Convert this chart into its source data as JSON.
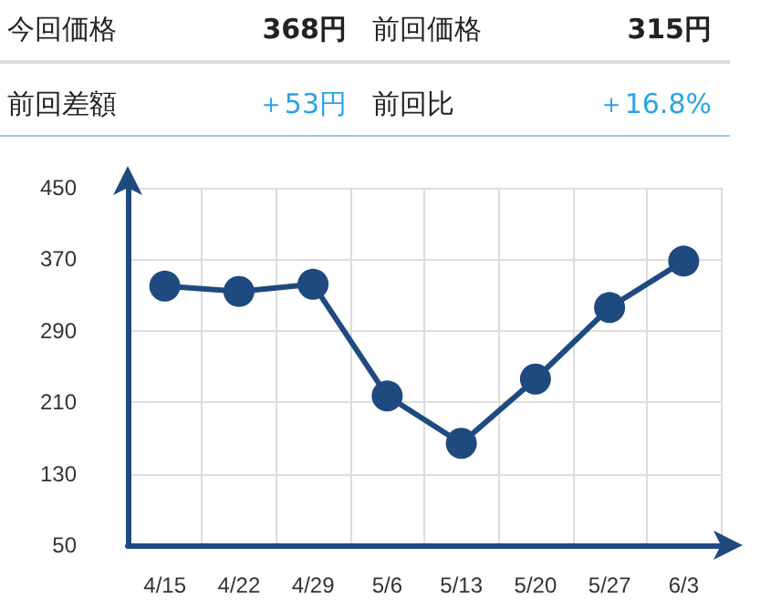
{
  "chart_data": {
    "type": "line",
    "annotations": [
      "今回価格",
      "368円",
      "前回価格",
      "315円",
      "前回差額",
      "＋53円",
      "前回比",
      "＋16.8%"
    ],
    "categories": [
      "4/15",
      "4/22",
      "4/29",
      "5/6",
      "5/13",
      "5/20",
      "5/27",
      "6/3"
    ],
    "series": [
      {
        "color": "#1f4a80",
        "values": [
          340,
          334,
          342,
          217,
          164,
          236,
          316,
          368
        ]
      }
    ],
    "ylim": [
      50,
      450
    ],
    "yticks": [
      50,
      130,
      210,
      290,
      370,
      450
    ],
    "grid": true,
    "marker": "circle",
    "line_style": "solid"
  }
}
